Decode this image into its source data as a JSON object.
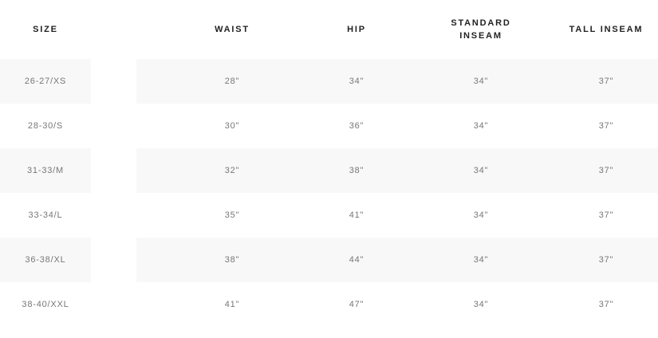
{
  "table": {
    "headers": [
      "SIZE",
      "WAIST",
      "HIP",
      "STANDARD INSEAM",
      "TALL INSEAM"
    ],
    "rows": [
      [
        "26-27/XS",
        "28\"",
        "34\"",
        "34\"",
        "37\""
      ],
      [
        "28-30/S",
        "30\"",
        "36\"",
        "34\"",
        "37\""
      ],
      [
        "31-33/M",
        "32\"",
        "38\"",
        "34\"",
        "37\""
      ],
      [
        "33-34/L",
        "35\"",
        "41\"",
        "34\"",
        "37\""
      ],
      [
        "36-38/XL",
        "38\"",
        "44\"",
        "34\"",
        "37\""
      ],
      [
        "38-40/XXL",
        "41\"",
        "47\"",
        "34\"",
        "37\""
      ]
    ]
  }
}
